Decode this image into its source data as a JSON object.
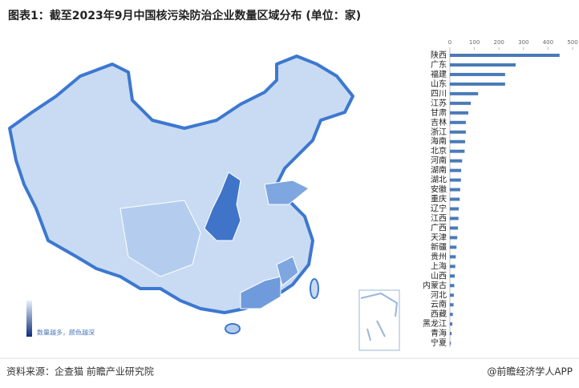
{
  "chart_data": {
    "type": "bar",
    "orientation": "horizontal",
    "title": "图表1：截至2023年9月中国核污染防治企业数量区域分布 (单位：家)",
    "categories": [
      "陕西",
      "广东",
      "福建",
      "山东",
      "四川",
      "江苏",
      "甘肃",
      "吉林",
      "浙江",
      "海南",
      "北京",
      "河南",
      "湖南",
      "湖北",
      "安徽",
      "重庆",
      "辽宁",
      "江西",
      "广西",
      "天津",
      "新疆",
      "贵州",
      "上海",
      "山西",
      "内蒙古",
      "河北",
      "云南",
      "西藏",
      "黑龙江",
      "青海",
      "宁夏"
    ],
    "values": [
      447,
      268,
      225,
      225,
      115,
      85,
      75,
      65,
      65,
      62,
      60,
      50,
      46,
      45,
      42,
      40,
      36,
      35,
      33,
      30,
      27,
      24,
      22,
      20,
      18,
      16,
      15,
      12,
      10,
      7,
      4
    ],
    "color": "#4a7ab8",
    "xlim": [
      0,
      500
    ],
    "xticks": [
      0,
      100,
      200,
      300,
      400,
      500
    ],
    "legend_note": "数量越多，颜色越深"
  },
  "source": "资料来源：企查猫 前瞻产业研究院",
  "credit": "@前瞻经济学人APP"
}
